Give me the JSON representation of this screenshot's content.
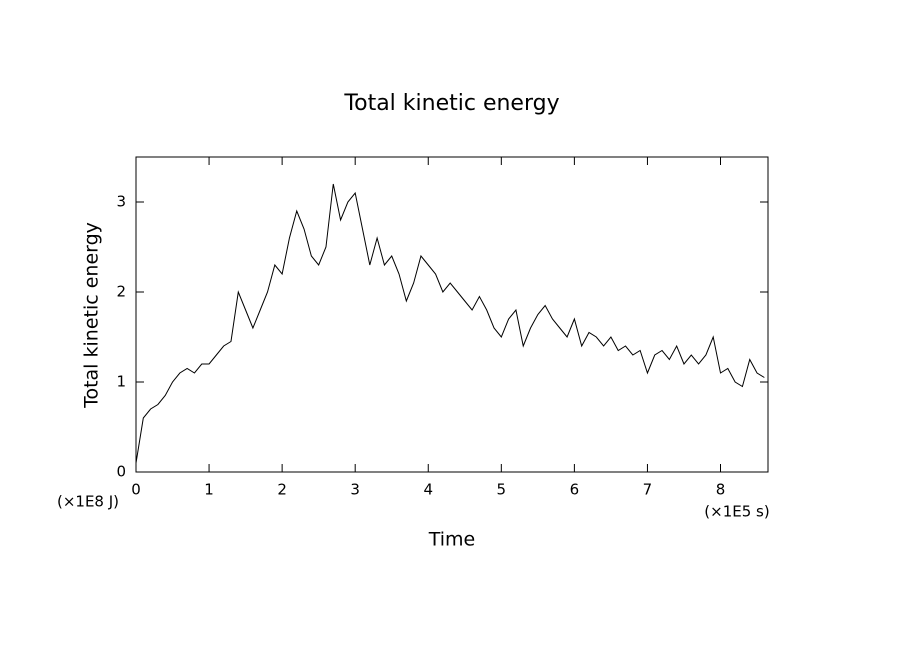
{
  "chart_data": {
    "type": "line",
    "title": "Total kinetic energy",
    "xlabel": "Time",
    "ylabel": "Total kinetic energy",
    "x_unit": "(×1E5 s)",
    "y_unit": "(×1E8 J)",
    "x": [
      0,
      0.1,
      0.2,
      0.3,
      0.4,
      0.5,
      0.6,
      0.7,
      0.8,
      0.9,
      1.0,
      1.1,
      1.2,
      1.3,
      1.4,
      1.5,
      1.6,
      1.7,
      1.8,
      1.9,
      2.0,
      2.1,
      2.2,
      2.3,
      2.4,
      2.5,
      2.6,
      2.7,
      2.8,
      2.9,
      3.0,
      3.1,
      3.2,
      3.3,
      3.4,
      3.5,
      3.6,
      3.7,
      3.8,
      3.9,
      4.0,
      4.1,
      4.2,
      4.3,
      4.4,
      4.5,
      4.6,
      4.7,
      4.8,
      4.9,
      5.0,
      5.1,
      5.2,
      5.3,
      5.4,
      5.5,
      5.6,
      5.7,
      5.8,
      5.9,
      6.0,
      6.1,
      6.2,
      6.3,
      6.4,
      6.5,
      6.6,
      6.7,
      6.8,
      6.9,
      7.0,
      7.1,
      7.2,
      7.3,
      7.4,
      7.5,
      7.6,
      7.7,
      7.8,
      7.9,
      8.0,
      8.1,
      8.2,
      8.3,
      8.4,
      8.5,
      8.6
    ],
    "series": [
      {
        "name": "Total kinetic energy",
        "color": "#000000",
        "values": [
          0.1,
          0.6,
          0.7,
          0.75,
          0.85,
          1.0,
          1.1,
          1.15,
          1.1,
          1.2,
          1.2,
          1.3,
          1.4,
          1.45,
          2.0,
          1.8,
          1.6,
          1.8,
          2.0,
          2.3,
          2.2,
          2.6,
          2.9,
          2.7,
          2.4,
          2.3,
          2.5,
          3.2,
          2.8,
          3.0,
          3.1,
          2.7,
          2.3,
          2.6,
          2.3,
          2.4,
          2.2,
          1.9,
          2.1,
          2.4,
          2.3,
          2.2,
          2.0,
          2.1,
          2.0,
          1.9,
          1.8,
          1.95,
          1.8,
          1.6,
          1.5,
          1.7,
          1.8,
          1.4,
          1.6,
          1.75,
          1.85,
          1.7,
          1.6,
          1.5,
          1.7,
          1.4,
          1.55,
          1.5,
          1.4,
          1.5,
          1.35,
          1.4,
          1.3,
          1.35,
          1.1,
          1.3,
          1.35,
          1.25,
          1.4,
          1.2,
          1.3,
          1.2,
          1.3,
          1.5,
          1.1,
          1.15,
          1.0,
          0.95,
          1.25,
          1.1,
          1.05
        ]
      }
    ],
    "xlim": [
      0,
      8.65
    ],
    "ylim": [
      0,
      3.5
    ],
    "xticks": [
      0,
      1,
      2,
      3,
      4,
      5,
      6,
      7,
      8
    ],
    "yticks": [
      0,
      1,
      2,
      3
    ]
  }
}
